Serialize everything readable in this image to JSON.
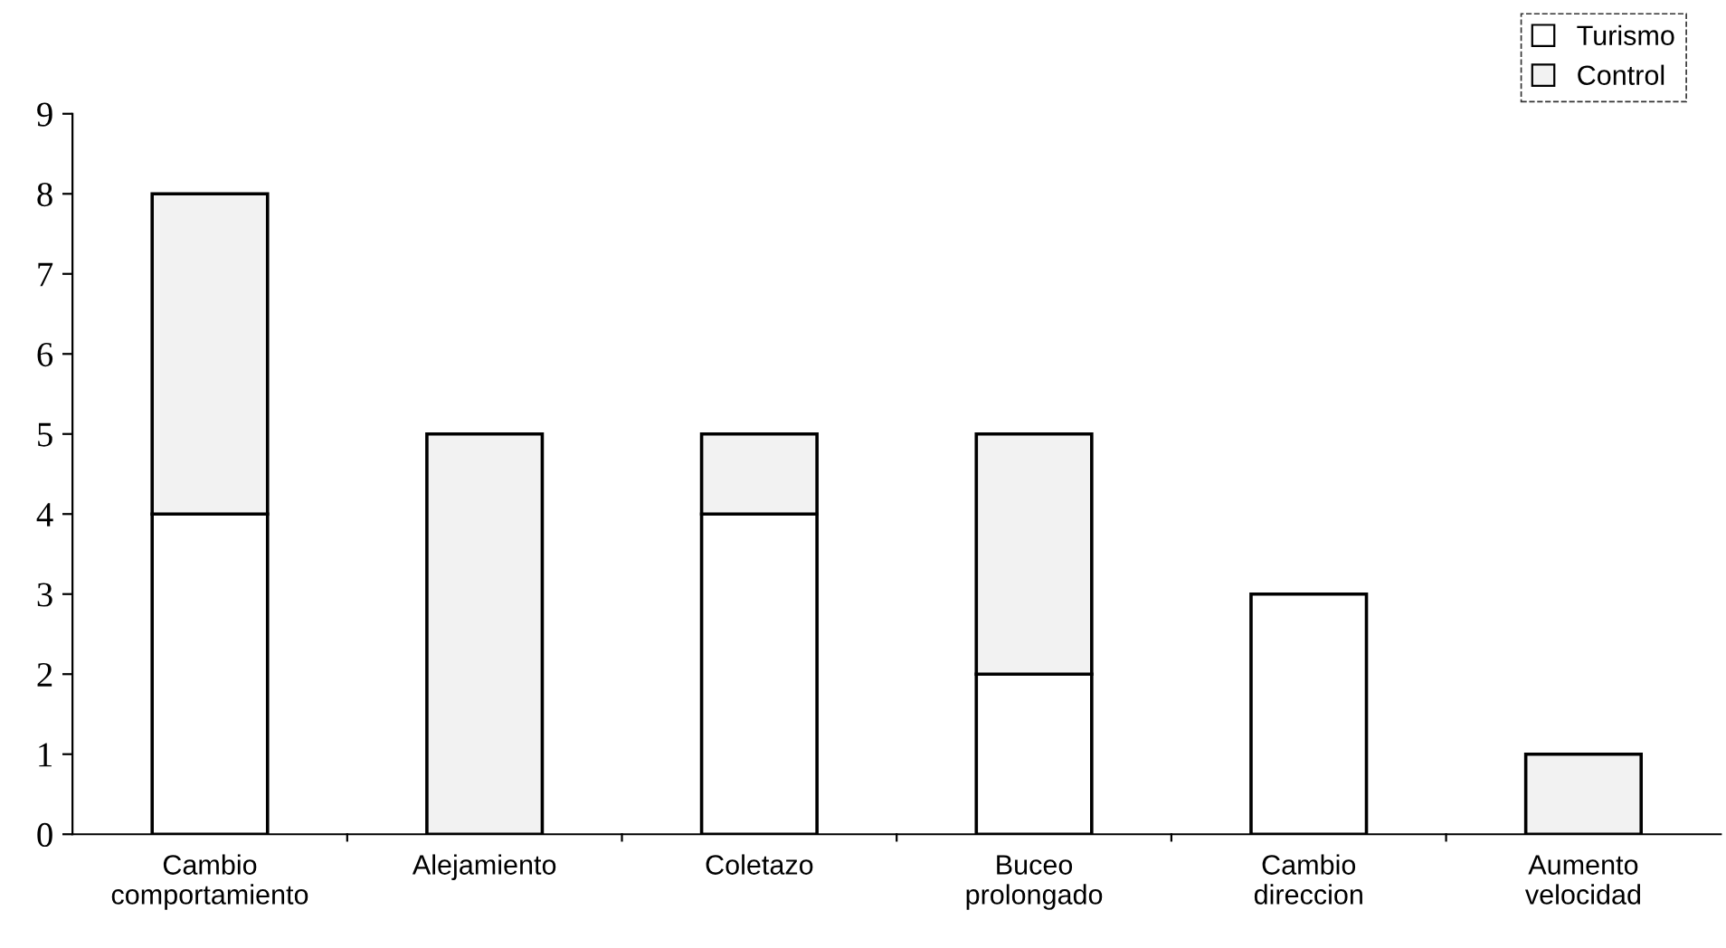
{
  "chart_data": {
    "type": "bar",
    "stacked": true,
    "categories": [
      "Cambio comportamiento",
      "Alejamiento",
      "Coletazo",
      "Buceo prolongado",
      "Cambio direccion",
      "Aumento velocidad"
    ],
    "series": [
      {
        "name": "Turismo",
        "color": "#ffffff",
        "values": [
          4,
          0,
          4,
          2,
          3,
          0
        ]
      },
      {
        "name": "Control",
        "color": "#f2f2f2",
        "values": [
          4,
          5,
          1,
          3,
          0,
          1
        ]
      }
    ],
    "ylim": [
      0,
      9
    ],
    "yticks": [
      0,
      1,
      2,
      3,
      4,
      5,
      6,
      7,
      8,
      9
    ],
    "grid": false,
    "legend": "top right"
  }
}
